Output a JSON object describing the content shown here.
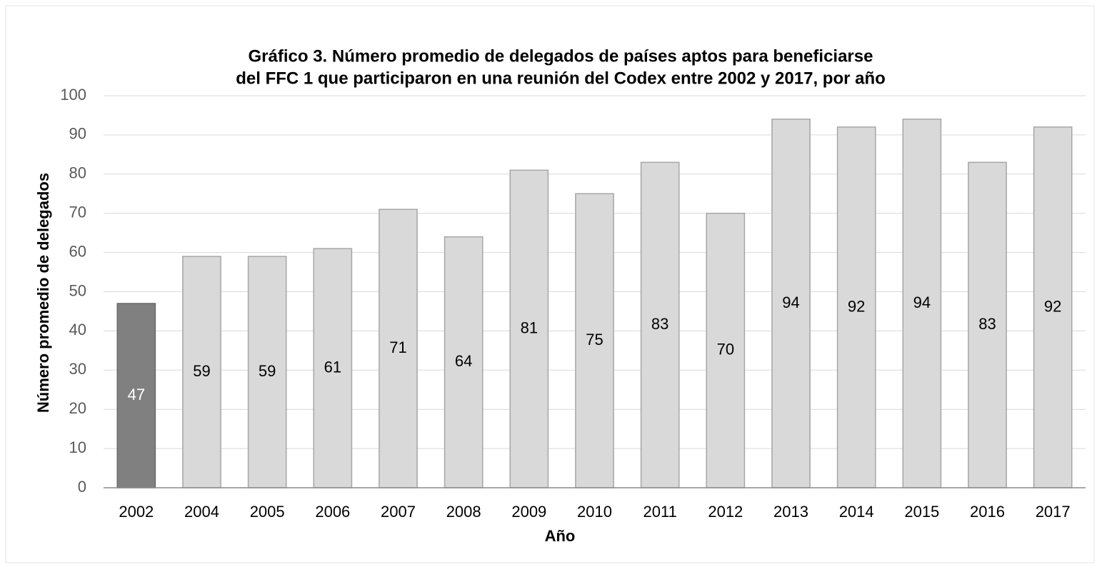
{
  "chart_data": {
    "type": "bar",
    "title": [
      "Gráfico 3. Número promedio de delegados de países aptos para beneficiarse",
      "del FFC 1 que participaron en una reunión del Codex entre 2002 y 2017, por año"
    ],
    "x_label": "Año",
    "y_label": "Número promedio de delegados",
    "categories": [
      "2002",
      "2004",
      "2005",
      "2006",
      "2007",
      "2008",
      "2009",
      "2010",
      "2011",
      "2012",
      "2013",
      "2014",
      "2015",
      "2016",
      "2017"
    ],
    "values": [
      47,
      59,
      59,
      61,
      71,
      64,
      81,
      75,
      83,
      70,
      94,
      92,
      94,
      83,
      92
    ],
    "colors": [
      "#808080",
      "#d9d9d9",
      "#d9d9d9",
      "#d9d9d9",
      "#d9d9d9",
      "#d9d9d9",
      "#d9d9d9",
      "#d9d9d9",
      "#d9d9d9",
      "#d9d9d9",
      "#d9d9d9",
      "#d9d9d9",
      "#d9d9d9",
      "#d9d9d9",
      "#d9d9d9"
    ],
    "ylim": [
      0,
      100
    ],
    "yticks": [
      0,
      10,
      20,
      30,
      40,
      50,
      60,
      70,
      80,
      90,
      100
    ],
    "grid": true
  }
}
